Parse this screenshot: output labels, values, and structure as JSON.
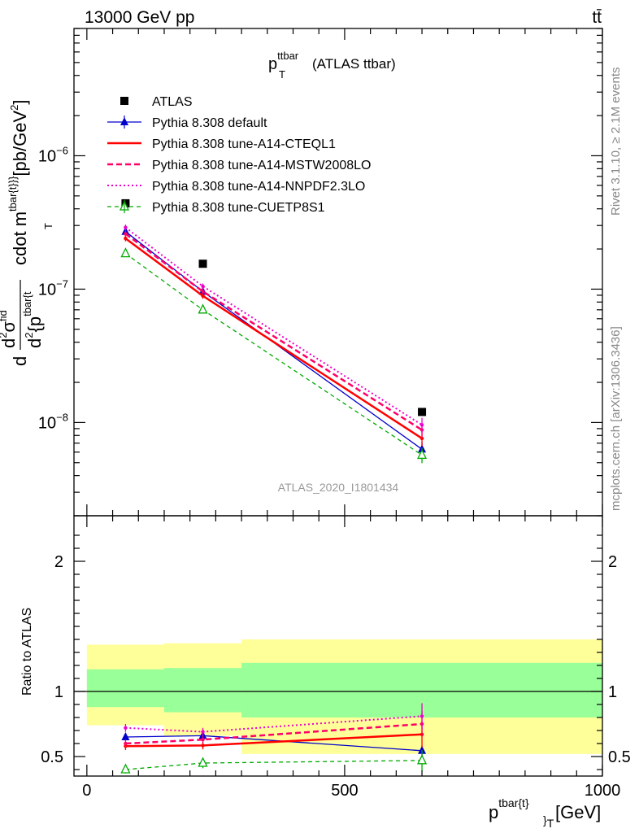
{
  "header": {
    "left": "13000 GeV pp",
    "right": "tt̄"
  },
  "side_labels": {
    "rivet": "Rivet 3.1.10, ≥ 2.1M events",
    "mcplots": "mcplots.cern.ch [arXiv:1306.3436]"
  },
  "chart_data": [
    {
      "type": "line",
      "title_main": "p",
      "title_sup": "ttbar",
      "title_sub": "T",
      "title_tail": "(ATLAS ttbar)",
      "watermark": "ATLAS_2020_I1801434",
      "ylabel": "d²σ^fid / d²{p_T^tbar{t}} cdot m^{tbar{t}}} [pb/GeV²]",
      "ylabel_parts": {
        "lead": "d",
        "num": "d",
        "num_sup": "2",
        "num_sigma": "σ",
        "num_sigma_sup": "fid",
        "den": "d",
        "den_sup": "2",
        "den_tail": "{p",
        "den_tail_sub": "T",
        "den_tail_sup": "tbar{t",
        "middle": "cdot m",
        "middle_sup": "tbar{t}}}",
        "unit": "[pb/GeV",
        "unit_sup": "2",
        "unit_close": "]"
      },
      "xlabel": "p^{tbar{t}}_T [GeV]",
      "xlabel_parts": {
        "p": "p",
        "sup": "tbar{t}",
        "sub": "}",
        "subT": "T",
        "unit": "[GeV]"
      },
      "yscale": "log",
      "xlim": [
        -25,
        1000
      ],
      "ylim": [
        2e-09,
        9e-06
      ],
      "yticks": [
        {
          "value": 1e-06,
          "base": "10",
          "exp": "−6"
        },
        {
          "value": 1e-07,
          "base": "10",
          "exp": "−7"
        },
        {
          "value": 1e-08,
          "base": "10",
          "exp": "−8"
        }
      ],
      "legend_position": "upper-left",
      "x": [
        75,
        225,
        650
      ],
      "bins": [
        [
          0,
          150
        ],
        [
          150,
          300
        ],
        [
          300,
          1000
        ]
      ],
      "series": [
        {
          "name": "ATLAS",
          "style": "data",
          "color": "#000000",
          "values": [
            4.4e-07,
            1.55e-07,
            1.2e-08
          ]
        },
        {
          "name": "Pythia 8.308 default",
          "style": "solid",
          "color": "#0000cc",
          "marker": "triangle-filled",
          "values": [
            2.7e-07,
            9.6e-08,
            6.3e-09
          ]
        },
        {
          "name": "Pythia 8.308 tune-A14-CTEQL1",
          "style": "solid",
          "color": "#ff0000",
          "width": 2.5,
          "marker": "none",
          "values": [
            2.4e-07,
            8.9e-08,
            7.6e-09
          ]
        },
        {
          "name": "Pythia 8.308 tune-A14-MSTW2008LO",
          "style": "dashed",
          "color": "#ff0066",
          "width": 2.5,
          "marker": "none",
          "values": [
            2.6e-07,
            9.6e-08,
            8.8e-09
          ]
        },
        {
          "name": "Pythia 8.308 tune-A14-NNPDF2.3LO",
          "style": "dotted",
          "color": "#ee00cc",
          "width": 2,
          "marker": "none",
          "values": [
            2.9e-07,
            1.05e-07,
            9.6e-09
          ]
        },
        {
          "name": "Pythia 8.308 tune-CUETP8S1",
          "style": "dashed-thin",
          "color": "#00aa00",
          "marker": "triangle-open",
          "values": [
            1.85e-07,
            7e-08,
            5.7e-09
          ]
        }
      ]
    },
    {
      "type": "line",
      "ylabel": "Ratio to ATLAS",
      "ylim": [
        0.35,
        2.35
      ],
      "xlim": [
        -25,
        1000
      ],
      "yticks": [
        0.5,
        1,
        2
      ],
      "ytick_labels": [
        "0.5",
        "1",
        "2"
      ],
      "xticks": [
        0,
        500,
        1000
      ],
      "xtick_labels": [
        "0",
        "500",
        "1000"
      ],
      "bins": [
        [
          0,
          150
        ],
        [
          150,
          300
        ],
        [
          300,
          1000
        ]
      ],
      "x": [
        75,
        225,
        650
      ],
      "band_outer": [
        [
          0.74,
          1.36
        ],
        [
          0.66,
          1.37
        ],
        [
          0.52,
          1.4
        ]
      ],
      "band_inner": [
        [
          0.88,
          1.17
        ],
        [
          0.84,
          1.18
        ],
        [
          0.8,
          1.22
        ]
      ],
      "series": [
        {
          "name": "Pythia 8.308 default",
          "values": [
            0.65,
            0.66,
            0.545
          ]
        },
        {
          "name": "Pythia 8.308 tune-A14-CTEQL1",
          "values": [
            0.58,
            0.585,
            0.67
          ]
        },
        {
          "name": "Pythia 8.308 tune-A14-MSTW2008LO",
          "values": [
            0.6,
            0.63,
            0.75
          ]
        },
        {
          "name": "Pythia 8.308 tune-A14-NNPDF2.3LO",
          "values": [
            0.72,
            0.69,
            0.81
          ]
        },
        {
          "name": "Pythia 8.308 tune-CUETP8S1",
          "values": [
            0.4,
            0.45,
            0.47
          ]
        }
      ],
      "ratio_errors": [
        [
          0.03,
          0.02,
          0.04
        ],
        [
          0.03,
          0.03,
          0.1
        ],
        [
          0.03,
          0.03,
          0.1
        ],
        [
          0.03,
          0.03,
          0.1
        ],
        [
          0.03,
          0.04,
          0.08
        ]
      ]
    }
  ]
}
